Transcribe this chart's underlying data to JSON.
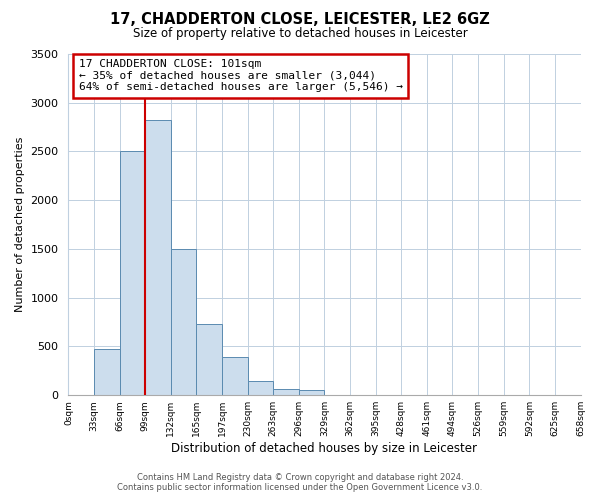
{
  "title": "17, CHADDERTON CLOSE, LEICESTER, LE2 6GZ",
  "subtitle": "Size of property relative to detached houses in Leicester",
  "xlabel": "Distribution of detached houses by size in Leicester",
  "ylabel": "Number of detached properties",
  "bar_values": [
    0,
    470,
    2500,
    2820,
    1500,
    730,
    390,
    145,
    60,
    55,
    0,
    0,
    0,
    0,
    0,
    0,
    0,
    0,
    0,
    0
  ],
  "tick_labels": [
    "0sqm",
    "33sqm",
    "66sqm",
    "99sqm",
    "132sqm",
    "165sqm",
    "197sqm",
    "230sqm",
    "263sqm",
    "296sqm",
    "329sqm",
    "362sqm",
    "395sqm",
    "428sqm",
    "461sqm",
    "494sqm",
    "526sqm",
    "559sqm",
    "592sqm",
    "625sqm",
    "658sqm"
  ],
  "bar_color": "#ccdded",
  "bar_edge_color": "#5a8ab0",
  "property_line_x": 3,
  "property_line_color": "#cc0000",
  "ylim": [
    0,
    3500
  ],
  "yticks": [
    0,
    500,
    1000,
    1500,
    2000,
    2500,
    3000,
    3500
  ],
  "annotation_title": "17 CHADDERTON CLOSE: 101sqm",
  "annotation_line1": "← 35% of detached houses are smaller (3,044)",
  "annotation_line2": "64% of semi-detached houses are larger (5,546) →",
  "footer_line1": "Contains HM Land Registry data © Crown copyright and database right 2024.",
  "footer_line2": "Contains public sector information licensed under the Open Government Licence v3.0.",
  "background_color": "#ffffff",
  "grid_color": "#c0d0e0"
}
